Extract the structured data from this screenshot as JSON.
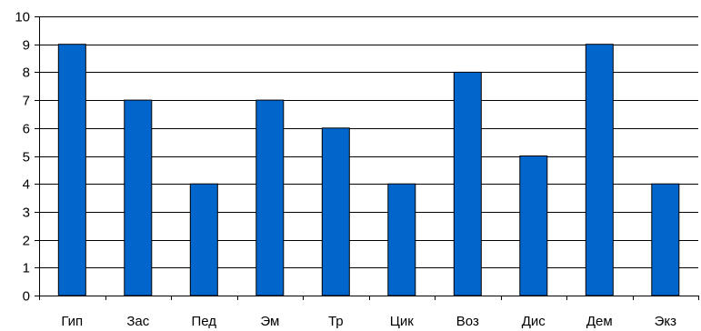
{
  "chart_data": {
    "type": "bar",
    "title": "",
    "xlabel": "",
    "ylabel": "",
    "categories": [
      "Гип",
      "Зас",
      "Пед",
      "Эм",
      "Тр",
      "Цик",
      "Воз",
      "Дис",
      "Дем",
      "Экз"
    ],
    "values": [
      9,
      7,
      4,
      7,
      6,
      4,
      8,
      5,
      9,
      4
    ],
    "ylim": [
      0,
      10
    ],
    "yticks": [
      0,
      1,
      2,
      3,
      4,
      5,
      6,
      7,
      8,
      9,
      10
    ],
    "grid": true,
    "legend": "none",
    "colors": {
      "bar_fill": "#0066CC",
      "bar_stroke": "#000000",
      "grid": "#000000",
      "axis": "#000000",
      "text": "#000000"
    }
  }
}
